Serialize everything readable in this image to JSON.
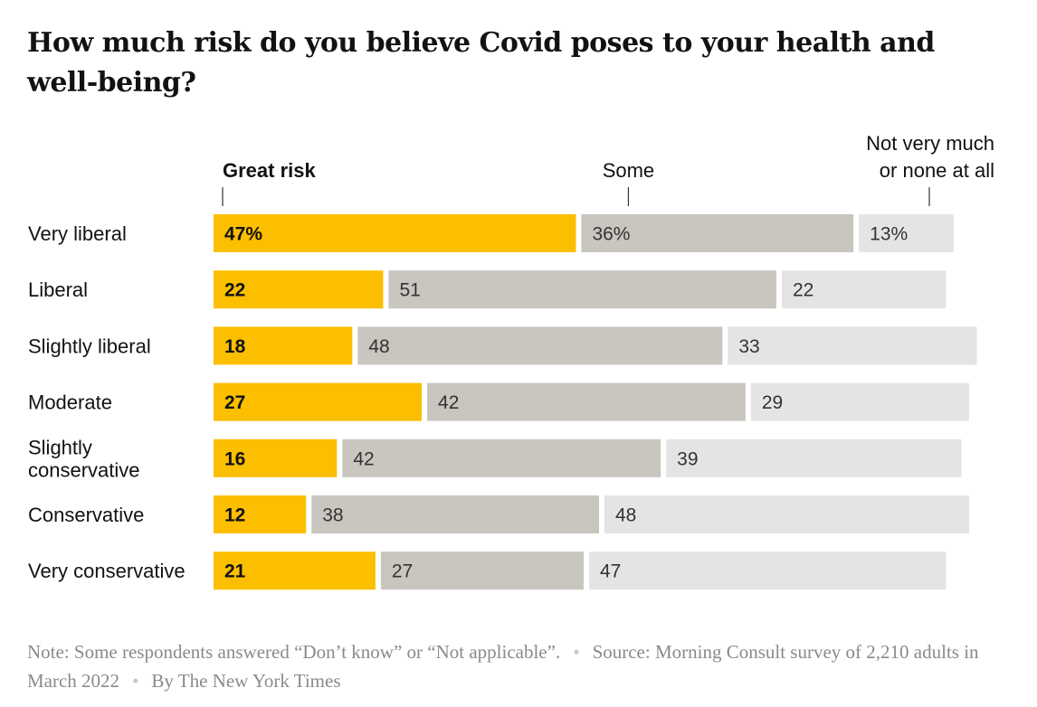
{
  "title": "How much risk do you believe Covid poses to your health and well-being?",
  "chart_data": {
    "type": "bar",
    "stacked": true,
    "orientation": "horizontal",
    "categories": [
      "Very liberal",
      "Liberal",
      "Slightly liberal",
      "Moderate",
      "Slightly conservative",
      "Conservative",
      "Very conservative"
    ],
    "category_lines": [
      [
        "Very liberal"
      ],
      [
        "Liberal"
      ],
      [
        "Slightly liberal"
      ],
      [
        "Moderate"
      ],
      [
        "Slightly",
        "conservative"
      ],
      [
        "Conservative"
      ],
      [
        "Very conservative"
      ]
    ],
    "series": [
      {
        "name": "Great risk",
        "header_lines": [
          "Great risk"
        ],
        "color": "#fbbf00",
        "text_color": "#121212",
        "bold": true,
        "values": [
          47,
          22,
          18,
          27,
          16,
          12,
          21
        ],
        "labels": [
          "47%",
          "22",
          "18",
          "27",
          "16",
          "12",
          "21"
        ]
      },
      {
        "name": "Some",
        "header_lines": [
          "Some"
        ],
        "color": "#c9c5bf",
        "text_color": "#333333",
        "bold": false,
        "values": [
          36,
          51,
          48,
          42,
          42,
          38,
          27
        ],
        "labels": [
          "36%",
          "51",
          "48",
          "42",
          "42",
          "38",
          "27"
        ]
      },
      {
        "name": "Not very much or none at all",
        "header_lines": [
          "Not very much",
          "or none at all"
        ],
        "color": "#e4e4e4",
        "text_color": "#333333",
        "bold": false,
        "values": [
          13,
          22,
          33,
          29,
          39,
          48,
          47
        ],
        "labels": [
          "13%",
          "22",
          "33",
          "29",
          "39",
          "48",
          "47"
        ]
      }
    ],
    "xlim": [
      0,
      100
    ],
    "grid": false,
    "legend": "top, above each segment"
  },
  "footer": {
    "note": "Note: Some respondents answered “Don’t know” or “Not applicable”.",
    "source": "Source: Morning Consult survey of 2,210 adults in March 2022",
    "byline": "By The New York Times",
    "separator": "•"
  }
}
